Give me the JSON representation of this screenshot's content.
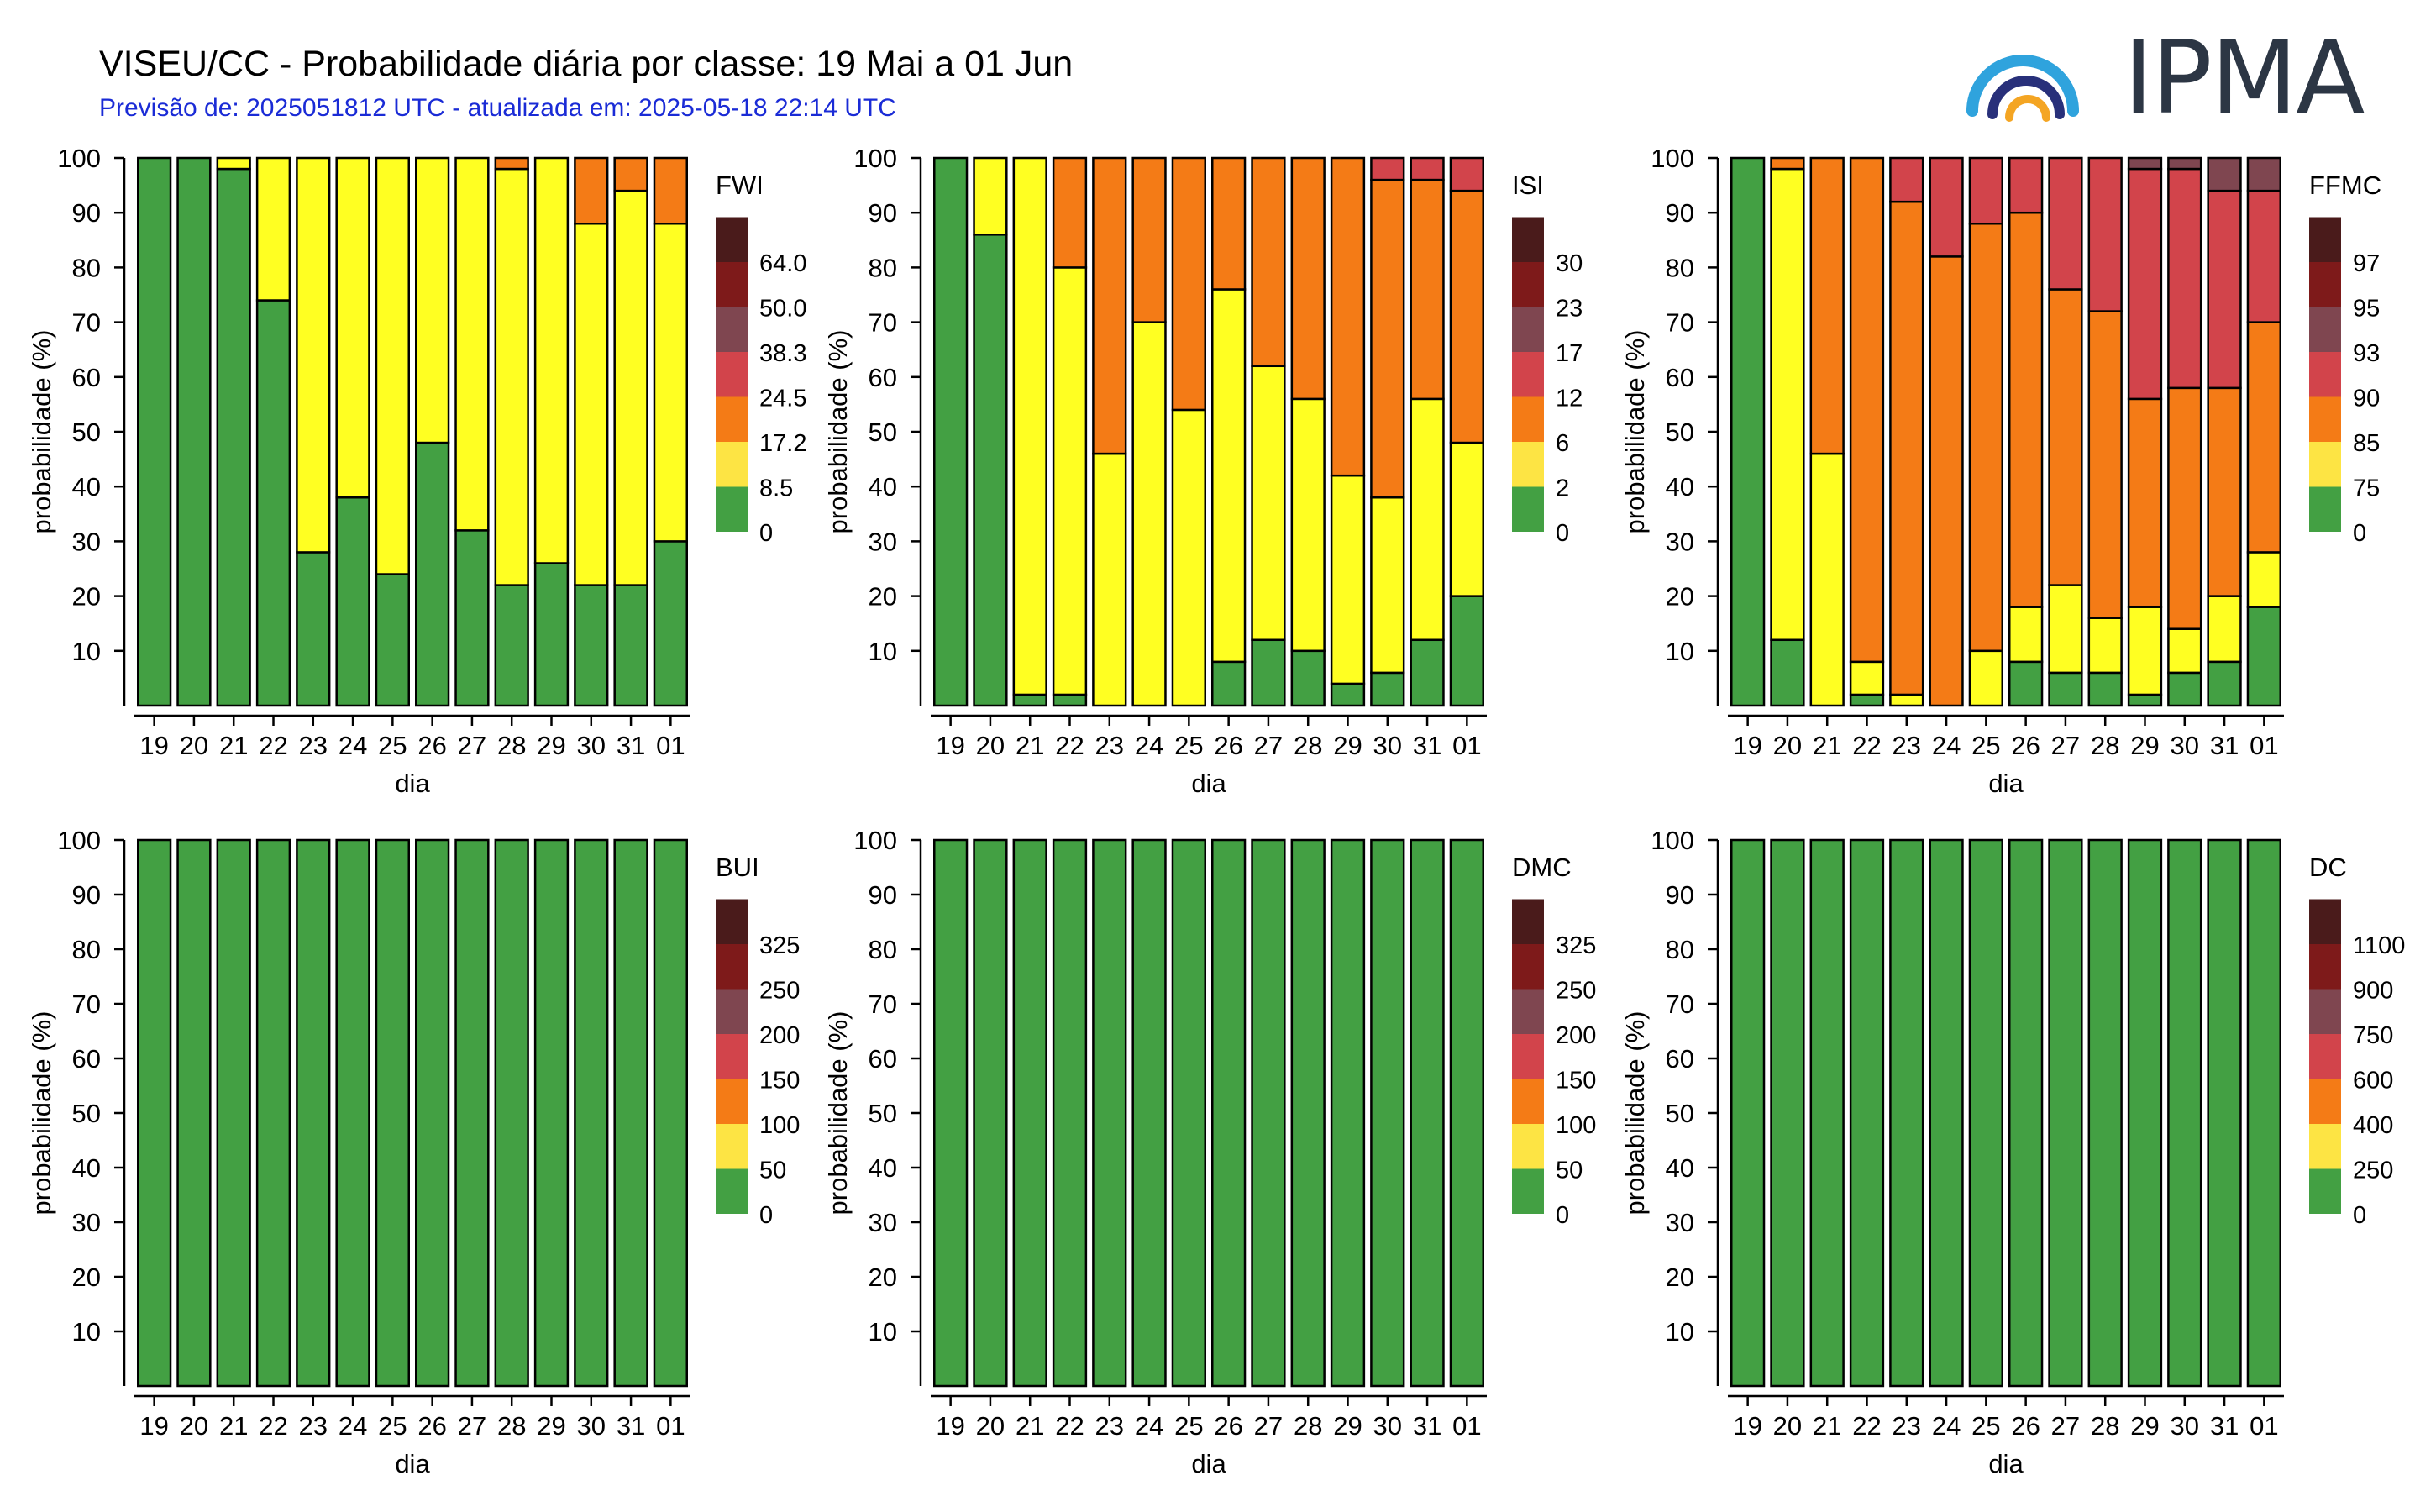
{
  "header": {
    "title": "VISEU/CC - Probabilidade diária por classe: 19 Mai a 01 Jun",
    "subtitle": "Previsão de: 2025051812 UTC - atualizada em: 2025-05-18 22:14 UTC",
    "logo_text": "IPMA"
  },
  "colors": {
    "green": "#43a043",
    "yellow": "#ffff22",
    "orange": "#f47b16",
    "red": "#d2444b",
    "mauve": "#7f4650",
    "darkred": "#7e1a1a",
    "darkbrown": "#4a1b1b",
    "legend_yellow": "#fde444",
    "logo_orange": "#f4a523",
    "logo_blue": "#2fa3dd",
    "logo_navy": "#28307a"
  },
  "chart_data": [
    {
      "type": "bar",
      "stacked": true,
      "legend_title": "FWI",
      "legend_labels": [
        "0",
        "8.5",
        "17.2",
        "24.5",
        "38.3",
        "50.0",
        "64.0"
      ],
      "xlabel": "dia",
      "ylabel": "probabilidade (%)",
      "ylim": [
        0,
        100
      ],
      "yticks": [
        10,
        20,
        30,
        40,
        50,
        60,
        70,
        80,
        90,
        100
      ],
      "categories": [
        "19",
        "20",
        "21",
        "22",
        "23",
        "24",
        "25",
        "26",
        "27",
        "28",
        "29",
        "30",
        "31",
        "01"
      ],
      "series": [
        {
          "values": [
            100,
            100,
            98,
            74,
            28,
            38,
            24,
            48,
            32,
            22,
            26,
            22,
            22,
            30
          ]
        },
        {
          "values": [
            0,
            0,
            2,
            26,
            72,
            62,
            76,
            52,
            68,
            76,
            74,
            66,
            72,
            58
          ]
        },
        {
          "values": [
            0,
            0,
            0,
            0,
            0,
            0,
            0,
            0,
            0,
            2,
            0,
            12,
            6,
            12
          ]
        },
        {
          "values": [
            0,
            0,
            0,
            0,
            0,
            0,
            0,
            0,
            0,
            0,
            0,
            0,
            0,
            0
          ]
        },
        {
          "values": [
            0,
            0,
            0,
            0,
            0,
            0,
            0,
            0,
            0,
            0,
            0,
            0,
            0,
            0
          ]
        },
        {
          "values": [
            0,
            0,
            0,
            0,
            0,
            0,
            0,
            0,
            0,
            0,
            0,
            0,
            0,
            0
          ]
        },
        {
          "values": [
            0,
            0,
            0,
            0,
            0,
            0,
            0,
            0,
            0,
            0,
            0,
            0,
            0,
            0
          ]
        }
      ]
    },
    {
      "type": "bar",
      "stacked": true,
      "legend_title": "ISI",
      "legend_labels": [
        "0",
        "2",
        "6",
        "12",
        "17",
        "23",
        "30"
      ],
      "xlabel": "dia",
      "ylabel": "probabilidade (%)",
      "ylim": [
        0,
        100
      ],
      "yticks": [
        10,
        20,
        30,
        40,
        50,
        60,
        70,
        80,
        90,
        100
      ],
      "categories": [
        "19",
        "20",
        "21",
        "22",
        "23",
        "24",
        "25",
        "26",
        "27",
        "28",
        "29",
        "30",
        "31",
        "01"
      ],
      "series": [
        {
          "values": [
            100,
            86,
            2,
            2,
            0,
            0,
            0,
            8,
            12,
            10,
            4,
            6,
            12,
            20
          ]
        },
        {
          "values": [
            0,
            14,
            98,
            78,
            46,
            70,
            54,
            68,
            50,
            46,
            38,
            32,
            44,
            28
          ]
        },
        {
          "values": [
            0,
            0,
            0,
            20,
            54,
            30,
            46,
            24,
            38,
            44,
            58,
            58,
            40,
            46
          ]
        },
        {
          "values": [
            0,
            0,
            0,
            0,
            0,
            0,
            0,
            0,
            0,
            0,
            0,
            4,
            4,
            6
          ]
        },
        {
          "values": [
            0,
            0,
            0,
            0,
            0,
            0,
            0,
            0,
            0,
            0,
            0,
            0,
            0,
            0
          ]
        },
        {
          "values": [
            0,
            0,
            0,
            0,
            0,
            0,
            0,
            0,
            0,
            0,
            0,
            0,
            0,
            0
          ]
        },
        {
          "values": [
            0,
            0,
            0,
            0,
            0,
            0,
            0,
            0,
            0,
            0,
            0,
            0,
            0,
            0
          ]
        }
      ]
    },
    {
      "type": "bar",
      "stacked": true,
      "legend_title": "FFMC",
      "legend_labels": [
        "0",
        "75",
        "85",
        "90",
        "93",
        "95",
        "97"
      ],
      "xlabel": "dia",
      "ylabel": "probabilidade (%)",
      "ylim": [
        0,
        100
      ],
      "yticks": [
        10,
        20,
        30,
        40,
        50,
        60,
        70,
        80,
        90,
        100
      ],
      "categories": [
        "19",
        "20",
        "21",
        "22",
        "23",
        "24",
        "25",
        "26",
        "27",
        "28",
        "29",
        "30",
        "31",
        "01"
      ],
      "series": [
        {
          "values": [
            100,
            12,
            0,
            2,
            0,
            0,
            0,
            8,
            6,
            6,
            2,
            6,
            8,
            18
          ]
        },
        {
          "values": [
            0,
            86,
            46,
            6,
            2,
            0,
            10,
            10,
            16,
            10,
            16,
            8,
            12,
            10
          ]
        },
        {
          "values": [
            0,
            2,
            54,
            92,
            90,
            82,
            78,
            72,
            54,
            56,
            38,
            44,
            38,
            42
          ]
        },
        {
          "values": [
            0,
            0,
            0,
            0,
            8,
            18,
            12,
            10,
            24,
            28,
            42,
            40,
            36,
            24
          ]
        },
        {
          "values": [
            0,
            0,
            0,
            0,
            0,
            0,
            0,
            0,
            0,
            0,
            2,
            2,
            6,
            6
          ]
        },
        {
          "values": [
            0,
            0,
            0,
            0,
            0,
            0,
            0,
            0,
            0,
            0,
            0,
            0,
            0,
            0
          ]
        },
        {
          "values": [
            0,
            0,
            0,
            0,
            0,
            0,
            0,
            0,
            0,
            0,
            0,
            0,
            0,
            0
          ]
        }
      ]
    },
    {
      "type": "bar",
      "stacked": true,
      "legend_title": "BUI",
      "legend_labels": [
        "0",
        "50",
        "100",
        "150",
        "200",
        "250",
        "325"
      ],
      "xlabel": "dia",
      "ylabel": "probabilidade (%)",
      "ylim": [
        0,
        100
      ],
      "yticks": [
        10,
        20,
        30,
        40,
        50,
        60,
        70,
        80,
        90,
        100
      ],
      "categories": [
        "19",
        "20",
        "21",
        "22",
        "23",
        "24",
        "25",
        "26",
        "27",
        "28",
        "29",
        "30",
        "31",
        "01"
      ],
      "series": [
        {
          "values": [
            100,
            100,
            100,
            100,
            100,
            100,
            100,
            100,
            100,
            100,
            100,
            100,
            100,
            100
          ]
        }
      ]
    },
    {
      "type": "bar",
      "stacked": true,
      "legend_title": "DMC",
      "legend_labels": [
        "0",
        "50",
        "100",
        "150",
        "200",
        "250",
        "325"
      ],
      "xlabel": "dia",
      "ylabel": "probabilidade (%)",
      "ylim": [
        0,
        100
      ],
      "yticks": [
        10,
        20,
        30,
        40,
        50,
        60,
        70,
        80,
        90,
        100
      ],
      "categories": [
        "19",
        "20",
        "21",
        "22",
        "23",
        "24",
        "25",
        "26",
        "27",
        "28",
        "29",
        "30",
        "31",
        "01"
      ],
      "series": [
        {
          "values": [
            100,
            100,
            100,
            100,
            100,
            100,
            100,
            100,
            100,
            100,
            100,
            100,
            100,
            100
          ]
        }
      ]
    },
    {
      "type": "bar",
      "stacked": true,
      "legend_title": "DC",
      "legend_labels": [
        "0",
        "250",
        "400",
        "600",
        "750",
        "900",
        "1100"
      ],
      "xlabel": "dia",
      "ylabel": "probabilidade (%)",
      "ylim": [
        0,
        100
      ],
      "yticks": [
        10,
        20,
        30,
        40,
        50,
        60,
        70,
        80,
        90,
        100
      ],
      "categories": [
        "19",
        "20",
        "21",
        "22",
        "23",
        "24",
        "25",
        "26",
        "27",
        "28",
        "29",
        "30",
        "31",
        "01"
      ],
      "series": [
        {
          "values": [
            100,
            100,
            100,
            100,
            100,
            100,
            100,
            100,
            100,
            100,
            100,
            100,
            100,
            100
          ]
        }
      ]
    }
  ]
}
